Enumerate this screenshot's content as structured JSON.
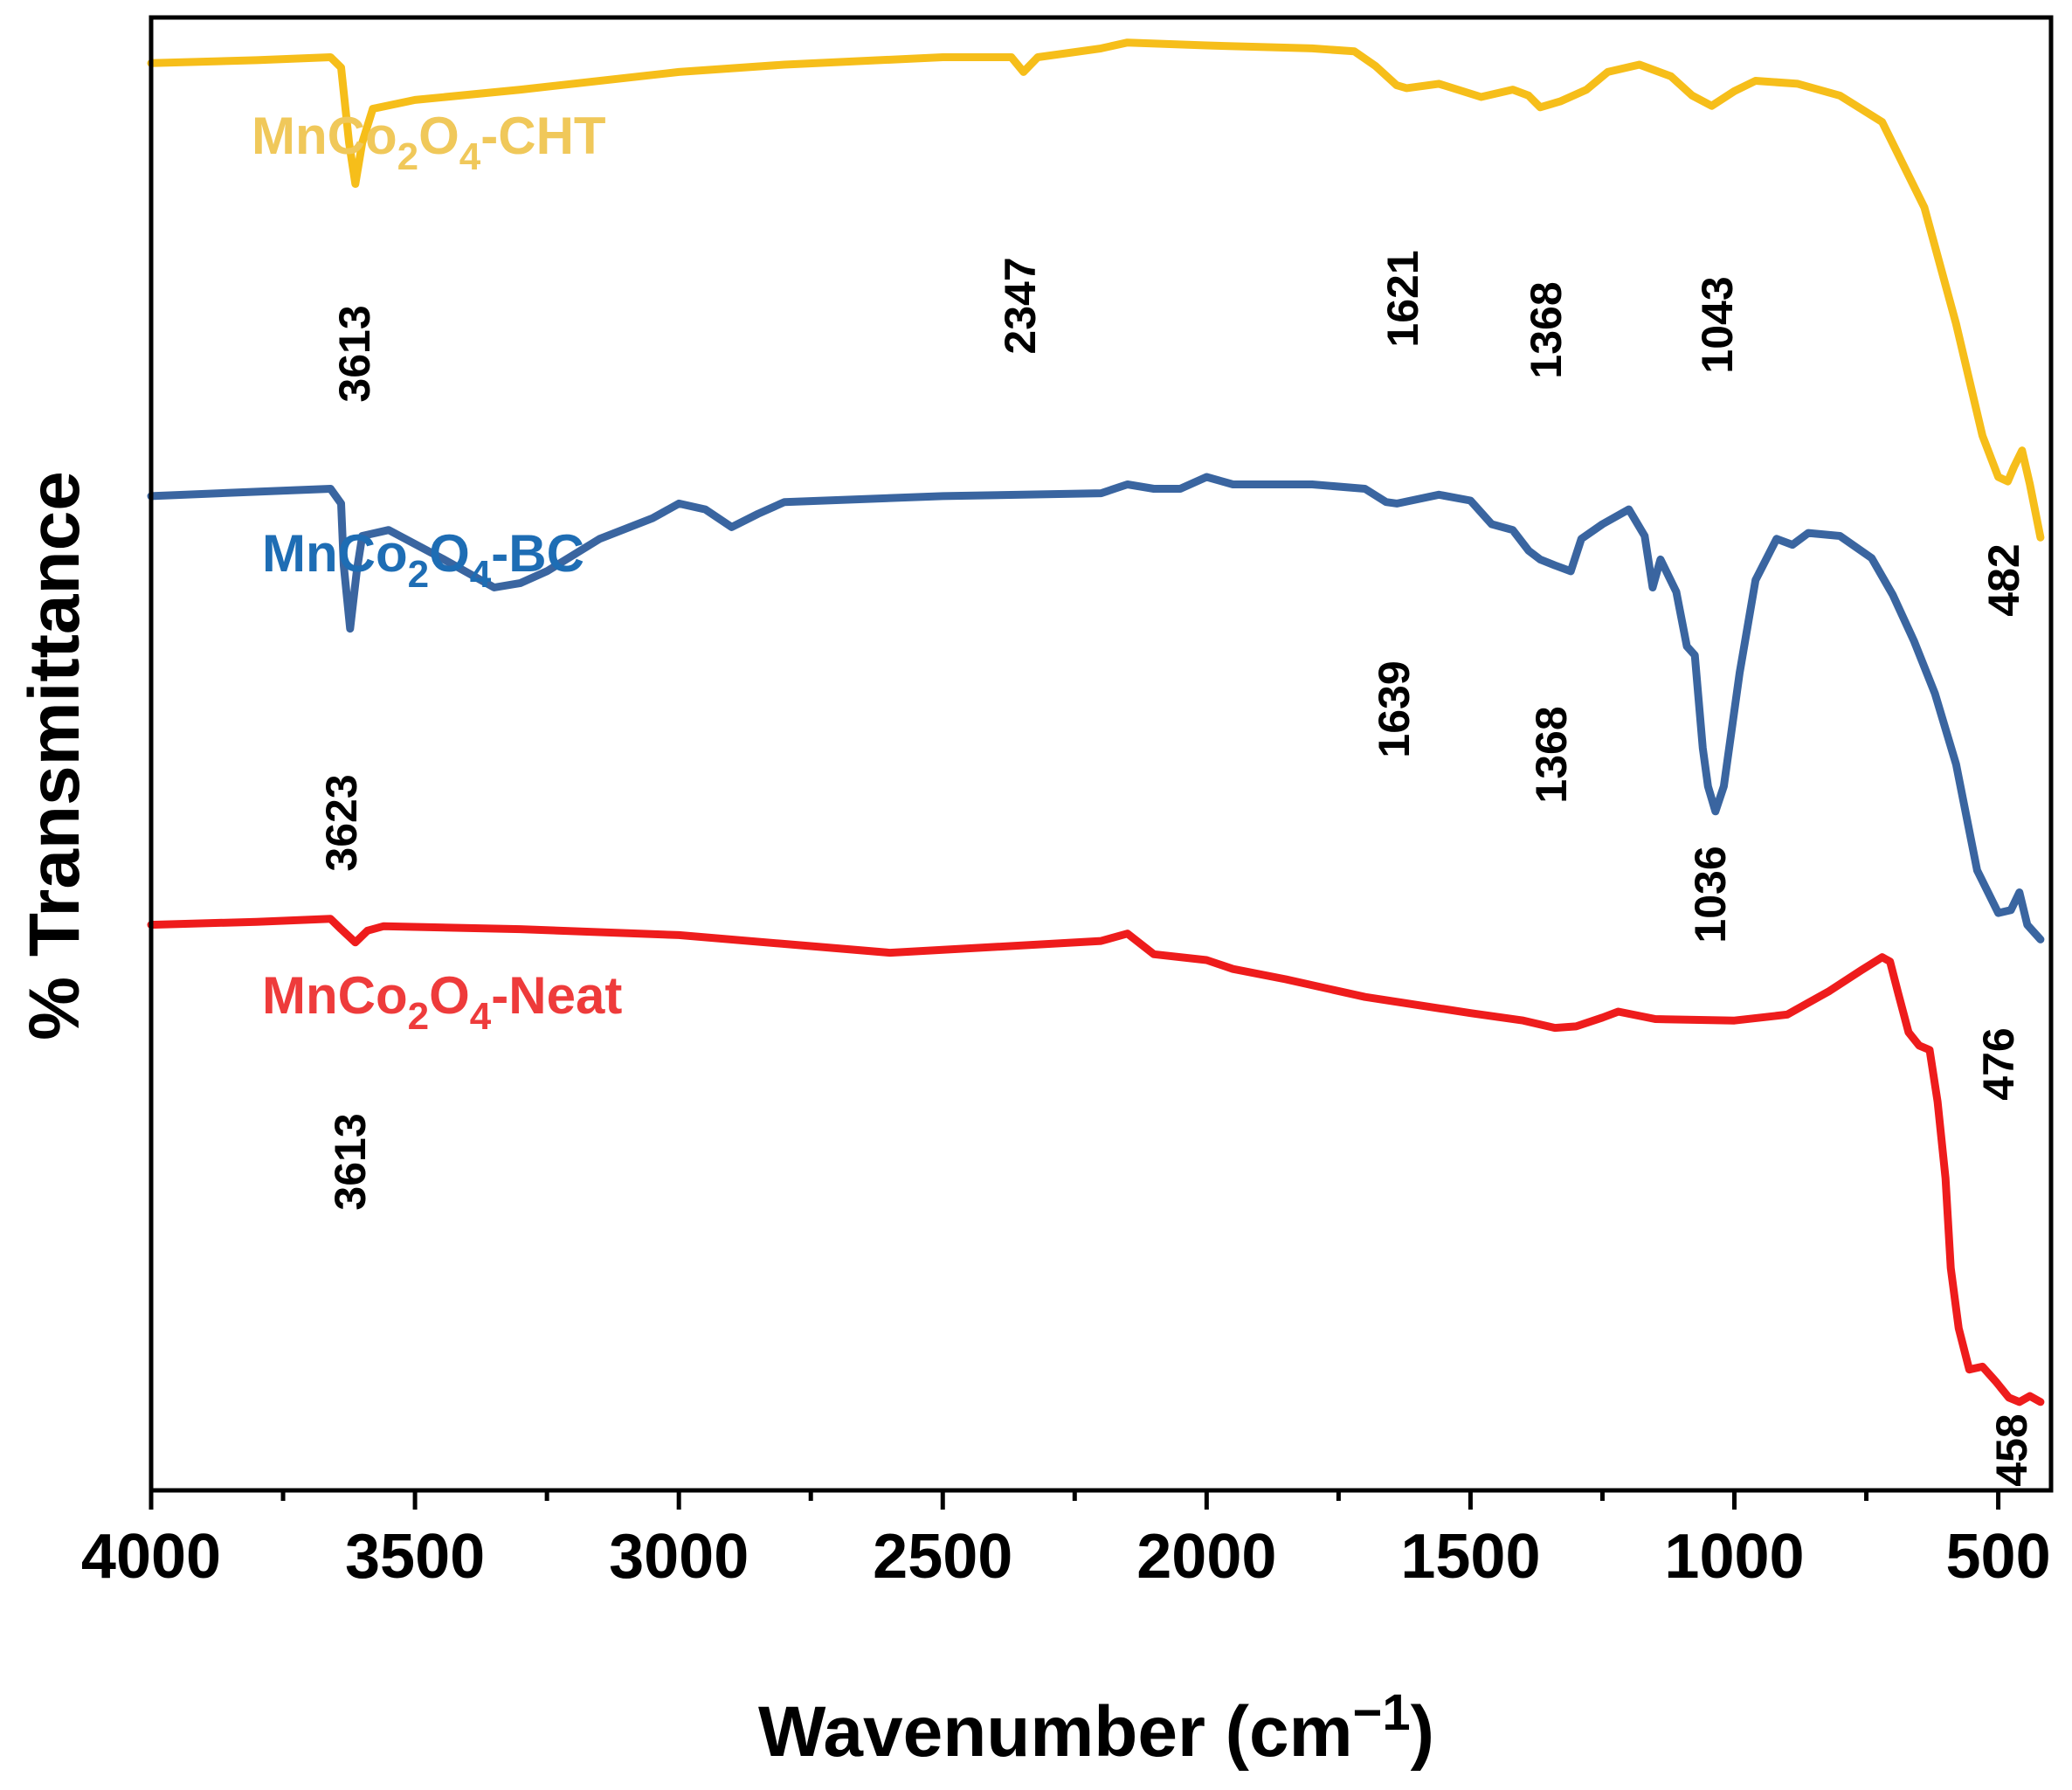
{
  "chart_data": {
    "type": "line",
    "title": "",
    "xlabel": "Wavenumber (cm",
    "xlabel_sup": "−1",
    "xlabel_close": ")",
    "ylabel": "% Transmittance",
    "xlim": [
      4000,
      400
    ],
    "ylim": [
      0,
      100
    ],
    "x_ticks": [
      {
        "value": 4000,
        "label": "4000"
      },
      {
        "value": 3500,
        "label": "3500"
      },
      {
        "value": 3000,
        "label": "3000"
      },
      {
        "value": 2500,
        "label": "2500"
      },
      {
        "value": 2000,
        "label": "2000"
      },
      {
        "value": 1500,
        "label": "1500"
      },
      {
        "value": 1000,
        "label": "1000"
      },
      {
        "value": 500,
        "label": "500"
      }
    ],
    "x_minor_ticks": [
      3750,
      3250,
      2750,
      2250,
      1750,
      1250,
      750
    ],
    "series": [
      {
        "name": "MnCo2O4-CHT",
        "label_parts": {
          "base": "MnCo",
          "sub1": "2",
          "mid": "O",
          "sub2": "4",
          "suffix": "-CHT"
        },
        "color": "#F6BE1A",
        "label_color": "#F0C85A",
        "points": [
          [
            4000,
            96.9
          ],
          [
            3800,
            97.1
          ],
          [
            3660,
            97.3
          ],
          [
            3640,
            96.6
          ],
          [
            3625,
            91.5
          ],
          [
            3613,
            88.7
          ],
          [
            3600,
            91.5
          ],
          [
            3580,
            93.8
          ],
          [
            3500,
            94.4
          ],
          [
            3300,
            95.1
          ],
          [
            3000,
            96.3
          ],
          [
            2800,
            96.8
          ],
          [
            2500,
            97.3
          ],
          [
            2370,
            97.3
          ],
          [
            2347,
            96.3
          ],
          [
            2320,
            97.3
          ],
          [
            2200,
            97.9
          ],
          [
            2150,
            98.3
          ],
          [
            2000,
            98.1
          ],
          [
            1800,
            97.9
          ],
          [
            1720,
            97.7
          ],
          [
            1680,
            96.7
          ],
          [
            1640,
            95.4
          ],
          [
            1621,
            95.2
          ],
          [
            1560,
            95.5
          ],
          [
            1480,
            94.6
          ],
          [
            1420,
            95.1
          ],
          [
            1390,
            94.7
          ],
          [
            1368,
            93.9
          ],
          [
            1330,
            94.3
          ],
          [
            1280,
            95.1
          ],
          [
            1240,
            96.3
          ],
          [
            1180,
            96.8
          ],
          [
            1120,
            96.0
          ],
          [
            1080,
            94.7
          ],
          [
            1043,
            94.0
          ],
          [
            1000,
            95.0
          ],
          [
            960,
            95.7
          ],
          [
            880,
            95.5
          ],
          [
            800,
            94.7
          ],
          [
            720,
            92.9
          ],
          [
            640,
            87.1
          ],
          [
            580,
            79.2
          ],
          [
            530,
            71.6
          ],
          [
            500,
            68.8
          ],
          [
            482,
            68.5
          ],
          [
            470,
            69.5
          ],
          [
            455,
            70.6
          ],
          [
            440,
            68.3
          ],
          [
            420,
            64.7
          ]
        ]
      },
      {
        "name": "MnCo2O4-BC",
        "label_parts": {
          "base": "MnCo",
          "sub1": "2",
          "mid": "O",
          "sub2": "4",
          "suffix": "-BC"
        },
        "color": "#3A65A0",
        "label_color": "#1E6DB4",
        "points": [
          [
            4000,
            67.5
          ],
          [
            3800,
            67.8
          ],
          [
            3660,
            68.0
          ],
          [
            3640,
            67.0
          ],
          [
            3635,
            62.8
          ],
          [
            3623,
            58.5
          ],
          [
            3610,
            62.5
          ],
          [
            3600,
            64.8
          ],
          [
            3550,
            65.2
          ],
          [
            3450,
            63.3
          ],
          [
            3350,
            61.3
          ],
          [
            3300,
            61.6
          ],
          [
            3250,
            62.4
          ],
          [
            3150,
            64.6
          ],
          [
            3050,
            66.0
          ],
          [
            3000,
            67.0
          ],
          [
            2950,
            66.6
          ],
          [
            2900,
            65.4
          ],
          [
            2850,
            66.3
          ],
          [
            2800,
            67.1
          ],
          [
            2500,
            67.5
          ],
          [
            2200,
            67.7
          ],
          [
            2150,
            68.3
          ],
          [
            2100,
            68.0
          ],
          [
            2050,
            68.0
          ],
          [
            2000,
            68.8
          ],
          [
            1950,
            68.3
          ],
          [
            1800,
            68.3
          ],
          [
            1700,
            68.0
          ],
          [
            1660,
            67.1
          ],
          [
            1639,
            67.0
          ],
          [
            1560,
            67.6
          ],
          [
            1500,
            67.2
          ],
          [
            1460,
            65.6
          ],
          [
            1420,
            65.2
          ],
          [
            1390,
            63.8
          ],
          [
            1368,
            63.2
          ],
          [
            1340,
            62.8
          ],
          [
            1310,
            62.4
          ],
          [
            1290,
            64.6
          ],
          [
            1250,
            65.6
          ],
          [
            1200,
            66.6
          ],
          [
            1170,
            64.8
          ],
          [
            1155,
            61.3
          ],
          [
            1140,
            63.2
          ],
          [
            1110,
            61.0
          ],
          [
            1090,
            57.3
          ],
          [
            1075,
            56.7
          ],
          [
            1060,
            50.4
          ],
          [
            1050,
            47.8
          ],
          [
            1036,
            46.1
          ],
          [
            1020,
            47.8
          ],
          [
            990,
            55.5
          ],
          [
            960,
            61.8
          ],
          [
            920,
            64.6
          ],
          [
            890,
            64.2
          ],
          [
            860,
            65.0
          ],
          [
            800,
            64.8
          ],
          [
            740,
            63.3
          ],
          [
            700,
            60.8
          ],
          [
            660,
            57.7
          ],
          [
            620,
            54.1
          ],
          [
            580,
            49.3
          ],
          [
            540,
            42.1
          ],
          [
            500,
            39.2
          ],
          [
            476,
            39.4
          ],
          [
            460,
            40.6
          ],
          [
            445,
            38.4
          ],
          [
            420,
            37.4
          ]
        ]
      },
      {
        "name": "MnCo2O4-Neat",
        "label_parts": {
          "base": "MnCo",
          "sub1": "2",
          "mid": "O",
          "sub2": "4",
          "suffix": "-Neat"
        },
        "color": "#EE1C1C",
        "label_color": "#EE3B3B",
        "points": [
          [
            4000,
            38.4
          ],
          [
            3800,
            38.6
          ],
          [
            3660,
            38.8
          ],
          [
            3640,
            38.1
          ],
          [
            3613,
            37.2
          ],
          [
            3590,
            38.0
          ],
          [
            3560,
            38.3
          ],
          [
            3300,
            38.1
          ],
          [
            3000,
            37.7
          ],
          [
            2800,
            37.1
          ],
          [
            2600,
            36.5
          ],
          [
            2400,
            36.9
          ],
          [
            2200,
            37.3
          ],
          [
            2150,
            37.8
          ],
          [
            2100,
            36.4
          ],
          [
            2000,
            36.0
          ],
          [
            1950,
            35.4
          ],
          [
            1850,
            34.7
          ],
          [
            1700,
            33.5
          ],
          [
            1500,
            32.4
          ],
          [
            1400,
            31.9
          ],
          [
            1340,
            31.4
          ],
          [
            1300,
            31.5
          ],
          [
            1250,
            32.1
          ],
          [
            1220,
            32.5
          ],
          [
            1150,
            32.0
          ],
          [
            1000,
            31.9
          ],
          [
            900,
            32.3
          ],
          [
            820,
            33.9
          ],
          [
            760,
            35.3
          ],
          [
            720,
            36.2
          ],
          [
            705,
            35.9
          ],
          [
            690,
            33.8
          ],
          [
            670,
            31.1
          ],
          [
            650,
            30.2
          ],
          [
            630,
            29.9
          ],
          [
            615,
            26.4
          ],
          [
            600,
            21.2
          ],
          [
            590,
            15.1
          ],
          [
            575,
            11.0
          ],
          [
            555,
            8.2
          ],
          [
            530,
            8.4
          ],
          [
            505,
            7.4
          ],
          [
            480,
            6.3
          ],
          [
            460,
            6.0
          ],
          [
            440,
            6.4
          ],
          [
            420,
            6.0
          ]
        ]
      }
    ],
    "peak_labels": {
      "cht": [
        "3613",
        "2347",
        "1621",
        "1368",
        "1043",
        "482"
      ],
      "bc": [
        "3623",
        "1639",
        "1368",
        "1036",
        "476"
      ],
      "neat": [
        "3613",
        "458"
      ]
    },
    "grid": false,
    "legend": "inline labels above each curve"
  }
}
